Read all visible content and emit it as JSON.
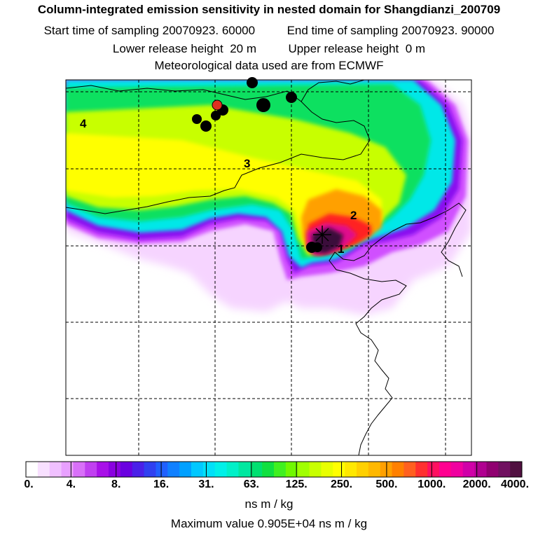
{
  "header": {
    "title": "Column-integrated emission sensitivity in nested domain for Shangdianzi_200709",
    "start_label": "Start time of sampling",
    "start_value": "20070923. 60000",
    "end_label": "End time of sampling",
    "end_value": "20070923. 90000",
    "lower_label": "Lower release height",
    "lower_value": "20 m",
    "upper_label": "Upper release height",
    "upper_value": "0 m",
    "met_line": "Meteorological data used are from ECMWF"
  },
  "map": {
    "labels": [
      "1",
      "2",
      "3",
      "4"
    ],
    "colors": {
      "very_high": "#3a0d3a",
      "high": "#d0108c",
      "red": "#ff2020",
      "orange": "#ffb000",
      "yellow": "#ffff00",
      "green": "#10e060",
      "cyan": "#00e8e8",
      "blue": "#3060ff",
      "purple": "#9a00e0",
      "magenta": "#e060ff",
      "pale": "#f8d8ff"
    }
  },
  "colorbar": {
    "tick_labels": [
      "0.",
      "4.",
      "8.",
      "16.",
      "31.",
      "63.",
      "125.",
      "250.",
      "500.",
      "1000.",
      "2000.",
      "4000."
    ],
    "colors": [
      "#ffffff",
      "#f8e0ff",
      "#f0c0ff",
      "#e8a0ff",
      "#d870f8",
      "#c040f0",
      "#a810e8",
      "#8a00e0",
      "#6a00e0",
      "#4a20e8",
      "#3040f0",
      "#2060ff",
      "#1080ff",
      "#00a0ff",
      "#00c8ff",
      "#00e0f8",
      "#00f0e8",
      "#00f0c8",
      "#00e8a0",
      "#00e070",
      "#10e040",
      "#40f020",
      "#70f800",
      "#a0ff00",
      "#c8ff00",
      "#e8ff00",
      "#ffff00",
      "#ffe800",
      "#ffd000",
      "#ffb800",
      "#ffa000",
      "#ff8000",
      "#ff6020",
      "#ff3030",
      "#ff1060",
      "#ff0090",
      "#f000a0",
      "#d000a8",
      "#b00090",
      "#900070",
      "#701060",
      "#501040"
    ],
    "unit": "ns m / kg",
    "max_value_text": "Maximum value  0.905E+04 ns m / kg"
  }
}
